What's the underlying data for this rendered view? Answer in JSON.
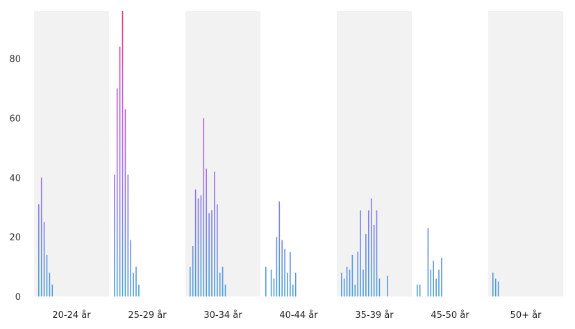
{
  "chart_data": {
    "type": "bar",
    "ylim": [
      0,
      96
    ],
    "yticks": [
      0,
      20,
      40,
      60,
      80
    ],
    "grid": false,
    "colors": {
      "panel_shade": "#f2f2f2",
      "low": "#4aa0d8",
      "mid": "#a46cf0",
      "high": "#e8305a"
    },
    "groups": [
      {
        "label": "20-24 år",
        "values": [
          31,
          40,
          25,
          14,
          8,
          4
        ]
      },
      {
        "label": "25-29 år",
        "values": [
          41,
          70,
          84,
          100,
          63,
          41,
          19,
          8,
          10,
          4
        ]
      },
      {
        "label": "30-34 år",
        "values": [
          10,
          17,
          36,
          33,
          34,
          60,
          43,
          28,
          29,
          42,
          31,
          8,
          10,
          4
        ]
      },
      {
        "label": "40-44 år",
        "values": [
          10,
          0,
          9,
          6,
          20,
          32,
          19,
          16,
          8,
          15,
          4,
          8
        ]
      },
      {
        "label": "35-39 år",
        "values": [
          8,
          6,
          10,
          9,
          14,
          4,
          15,
          29,
          9,
          21,
          29,
          33,
          24,
          29,
          6,
          0,
          0,
          7
        ]
      },
      {
        "label": "45-50 år",
        "values": [
          4,
          4,
          0,
          0,
          23,
          9,
          12,
          6,
          9,
          13
        ]
      },
      {
        "label": "50+ år",
        "values": [
          8,
          6,
          5
        ]
      }
    ]
  }
}
